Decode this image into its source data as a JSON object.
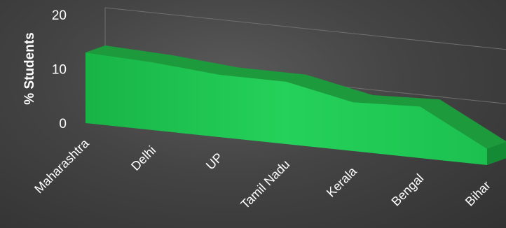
{
  "chart_data": {
    "type": "area",
    "title": "",
    "xlabel": "",
    "ylabel": "% Students",
    "ylim": [
      0,
      20
    ],
    "yticks": [
      0,
      10,
      20
    ],
    "grid": true,
    "legend": "none",
    "categories": [
      "Maharashtra",
      "Delhi",
      "UP",
      "Tamil Nadu",
      "Kerala",
      "Bengal",
      "Bihar"
    ],
    "series": [
      {
        "values": [
          13,
          12.5,
          11.5,
          11.5,
          9,
          9.5,
          3
        ],
        "color": "#1fc24e"
      }
    ],
    "colors": {
      "area_top": "#1c9a3c",
      "area_front": "#22cc55"
    }
  }
}
